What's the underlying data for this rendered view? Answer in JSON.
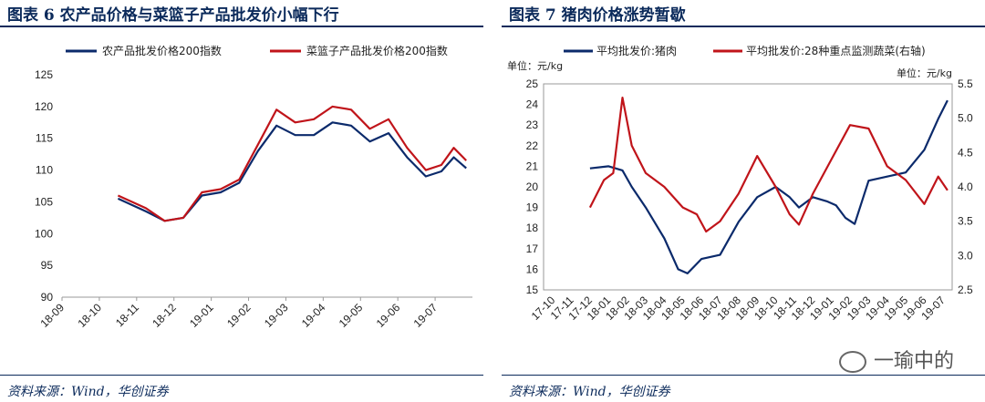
{
  "panels": [
    {
      "title": "图表 6   农产品价格与菜篮子产品批发价小幅下行",
      "source": "资料来源：Wind，华创证券"
    },
    {
      "title": "图表 7    猪肉价格涨势暂歇",
      "source": "资料来源：Wind，华创证券"
    }
  ],
  "watermark": "一瑜中的",
  "chart_data": [
    {
      "type": "line",
      "title": "",
      "xlabel": "",
      "ylabel": "",
      "ylim": [
        90,
        125
      ],
      "yticks": [
        90,
        95,
        100,
        105,
        110,
        115,
        120,
        125
      ],
      "xticks": [
        "18-09",
        "18-10",
        "18-11",
        "18-12",
        "19-01",
        "19-02",
        "19-03",
        "19-04",
        "19-05",
        "19-06",
        "19-07"
      ],
      "grid": false,
      "legend": "top",
      "series": [
        {
          "name": "农产品批发价格200指数",
          "color": "#0b2a6b",
          "x": [
            "18-10",
            "18-11",
            "18-11",
            "18-12",
            "18-12",
            "19-01",
            "19-01",
            "19-02",
            "19-02",
            "19-03",
            "19-03",
            "19-04",
            "19-04",
            "19-05",
            "19-05",
            "19-06",
            "19-06",
            "19-07",
            "19-07",
            "19-07"
          ],
          "y": [
            105.5,
            103.5,
            102.0,
            102.5,
            106.0,
            106.5,
            108.0,
            113.0,
            117.0,
            115.5,
            115.5,
            117.5,
            117.0,
            114.5,
            115.8,
            112.0,
            109.0,
            109.8,
            112.0,
            110.3
          ]
        },
        {
          "name": "菜篮子产品批发价格200指数",
          "color": "#c0141a",
          "x": [
            "18-10",
            "18-11",
            "18-11",
            "18-12",
            "18-12",
            "19-01",
            "19-01",
            "19-02",
            "19-02",
            "19-03",
            "19-03",
            "19-04",
            "19-04",
            "19-05",
            "19-05",
            "19-06",
            "19-06",
            "19-07",
            "19-07",
            "19-07"
          ],
          "y": [
            106.0,
            104.0,
            102.0,
            102.5,
            106.5,
            107.0,
            108.5,
            114.0,
            119.5,
            117.5,
            118.0,
            120.0,
            119.5,
            116.5,
            118.0,
            113.5,
            110.0,
            110.8,
            113.5,
            111.5
          ]
        }
      ]
    },
    {
      "type": "line",
      "title": "",
      "xlabel": "",
      "ylabel": "单位：元/kg",
      "ylabel_right": "单位：元/kg",
      "ylim": [
        15,
        25
      ],
      "ylim_right": [
        2.5,
        5.5
      ],
      "yticks": [
        15,
        16,
        17,
        18,
        19,
        20,
        21,
        22,
        23,
        24,
        25
      ],
      "yticks_right": [
        "2.5",
        "3.0",
        "3.5",
        "4.0",
        "4.5",
        "5.0",
        "5.5"
      ],
      "xticks": [
        "17-10",
        "17-11",
        "17-12",
        "18-01",
        "18-02",
        "18-03",
        "18-04",
        "18-05",
        "18-06",
        "18-07",
        "18-08",
        "18-09",
        "18-10",
        "18-11",
        "18-12",
        "19-01",
        "19-02",
        "19-03",
        "19-04",
        "19-05",
        "19-06",
        "19-07"
      ],
      "grid": false,
      "legend": "top",
      "series": [
        {
          "name": "平均批发价:猪肉",
          "axis": "left",
          "color": "#0b2a6b",
          "x": [
            "17-12",
            "18-01",
            "18-02",
            "18-02",
            "18-03",
            "18-04",
            "18-05",
            "18-05",
            "18-06",
            "18-07",
            "18-08",
            "18-09",
            "18-10",
            "18-11",
            "18-11",
            "18-12",
            "19-01",
            "19-01",
            "19-02",
            "19-02",
            "19-03",
            "19-04",
            "19-05",
            "19-06",
            "19-07",
            "19-07"
          ],
          "y": [
            20.9,
            21.0,
            20.8,
            20.0,
            19.0,
            17.5,
            16.0,
            15.8,
            16.5,
            16.7,
            18.3,
            19.5,
            20.0,
            19.5,
            19.0,
            19.5,
            19.3,
            19.1,
            18.5,
            18.2,
            20.3,
            20.5,
            20.7,
            21.8,
            23.3,
            24.2
          ]
        },
        {
          "name": "平均批发价:28种重点监测蔬菜(右轴)",
          "axis": "right",
          "color": "#c0141a",
          "x": [
            "17-12",
            "18-01",
            "18-01",
            "18-02",
            "18-02",
            "18-03",
            "18-04",
            "18-05",
            "18-06",
            "18-06",
            "18-07",
            "18-08",
            "18-09",
            "18-10",
            "18-11",
            "18-11",
            "18-12",
            "19-01",
            "19-02",
            "19-03",
            "19-04",
            "19-05",
            "19-06",
            "19-07",
            "19-07"
          ],
          "y": [
            3.7,
            4.1,
            4.2,
            5.3,
            4.6,
            4.2,
            4.0,
            3.7,
            3.6,
            3.35,
            3.5,
            3.9,
            4.45,
            4.0,
            3.6,
            3.45,
            3.9,
            4.4,
            4.9,
            4.85,
            4.3,
            4.1,
            3.75,
            4.15,
            3.95
          ]
        }
      ]
    }
  ]
}
